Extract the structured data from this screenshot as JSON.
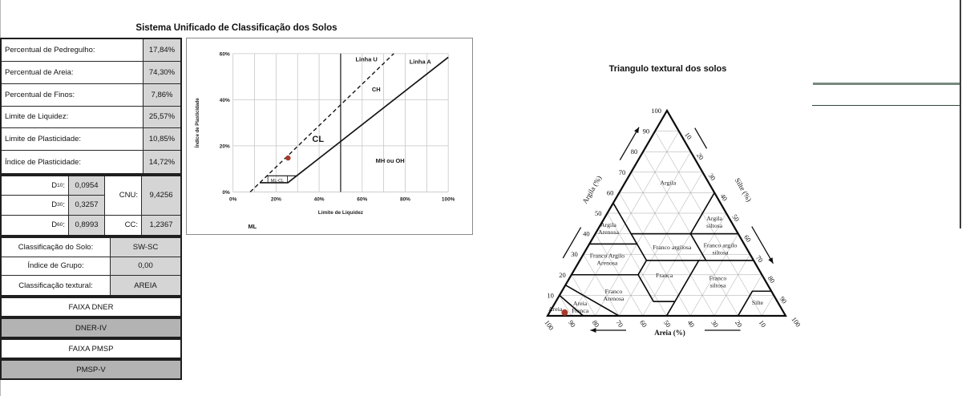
{
  "table": {
    "title": "Sistema Unificado de Classificação dos Solos",
    "rows": [
      {
        "label": "Percentual de Pedregulho:",
        "value": "17,84%"
      },
      {
        "label": "Percentual de Areia:",
        "value": "74,30%"
      },
      {
        "label": "Percentual de Finos:",
        "value": "7,86%"
      },
      {
        "label": "Limite de Liquidez:",
        "value": "25,57%"
      },
      {
        "label": "Limite de Plasticidade:",
        "value": "10,85%"
      },
      {
        "label": "Índice de Plasticidade:",
        "value": "14,72%"
      }
    ],
    "d_rows": [
      {
        "d": "D",
        "sub": "10",
        "colon": ":",
        "value": "0,0954"
      },
      {
        "d": "D",
        "sub": "30",
        "colon": ":",
        "value": "0,3257"
      },
      {
        "d": "D",
        "sub": "60",
        "colon": ":",
        "value": "0,8993"
      }
    ],
    "ratio_rows": [
      {
        "label": "CNU:",
        "value": "9,4256"
      },
      {
        "label": "CC:",
        "value": "1,2367"
      }
    ],
    "class_rows": [
      {
        "label": "Classificação do Solo:",
        "value": "SW-SC"
      },
      {
        "label": "Índice de Grupo:",
        "value": "0,00"
      },
      {
        "label": "Classificação textural:",
        "value": "AREIA"
      }
    ],
    "bands": [
      {
        "label": "FAIXA DNER"
      },
      {
        "label": "DNER-IV"
      },
      {
        "label": "FAIXA PMSP"
      },
      {
        "label": "PMSP-V"
      }
    ]
  },
  "colors": {
    "cell_fill": "#d5d5d5",
    "band_fill": "#b3b3b3",
    "grid_light": "#c6c6c6",
    "line_black": "#141414",
    "accent_line_thick": "#76897e",
    "accent_line_thin": "#31493c",
    "point_red": "#a63a28"
  },
  "chart_data": [
    {
      "type": "scatter",
      "title": "",
      "xlabel": "Limite de Liquidez",
      "ylabel": "Índice de Plasticidade",
      "xlim": [
        0,
        100
      ],
      "ylim": [
        0,
        60
      ],
      "x_ticks": [
        0,
        20,
        40,
        60,
        80,
        100
      ],
      "y_ticks": [
        0,
        20,
        40,
        60
      ],
      "tick_suffix": "%",
      "x_grid_step": 10,
      "y_grid_step": 20,
      "lines": [
        {
          "name": "Linha A",
          "style": "solid",
          "width": 1.7,
          "points": [
            [
              12.4,
              4
            ],
            [
              25.5,
              4
            ],
            [
              100,
              58.4
            ]
          ]
        },
        {
          "name": "Faixa ML-CL superior",
          "style": "solid",
          "width": 1.2,
          "points": [
            [
              15.8,
              7
            ],
            [
              29.6,
              7
            ]
          ]
        },
        {
          "name": "ML-CL caixa esquerda",
          "style": "solid",
          "width": 0.8,
          "points": [
            [
              16.2,
              4
            ],
            [
              16.2,
              7
            ]
          ]
        },
        {
          "name": "ML-CL caixa direita",
          "style": "solid",
          "width": 0.8,
          "points": [
            [
              25.3,
              4
            ],
            [
              25.3,
              7
            ]
          ]
        },
        {
          "name": "Linha U",
          "style": "dashed",
          "width": 1.4,
          "points": [
            [
              8,
              0
            ],
            [
              74.7,
              60
            ]
          ]
        },
        {
          "name": "Divisor LL 50%",
          "style": "solid",
          "width": 1.2,
          "points": [
            [
              50,
              0
            ],
            [
              50,
              60
            ]
          ]
        }
      ],
      "zone_labels": [
        {
          "text": "Linha U",
          "x": 62,
          "y": 57.5,
          "bold": true,
          "size": 7.5
        },
        {
          "text": "Linha A",
          "x": 87,
          "y": 56.5,
          "bold": true,
          "size": 7.5
        },
        {
          "text": "CH",
          "x": 66.5,
          "y": 44.5,
          "bold": true,
          "size": 7.5
        },
        {
          "text": "CL",
          "x": 39.5,
          "y": 23,
          "bold": true,
          "size": 11
        },
        {
          "text": "MH ou OH",
          "x": 73,
          "y": 13.5,
          "bold": true,
          "size": 7.5
        },
        {
          "text": "ML-CL",
          "x": 20.6,
          "y": 4.9,
          "bold": false,
          "size": 5.5
        },
        {
          "text": "ML",
          "x": 9,
          "y": -15,
          "bold": true,
          "size": 7.5
        }
      ],
      "point": {
        "x": 25.57,
        "y": 14.72
      }
    },
    {
      "type": "ternary",
      "title": "Triangulo textural dos solos",
      "axis_labels": {
        "left": "Argila (%)",
        "right": "Silte (%)",
        "bottom": "Areia (%)"
      },
      "grid_step": 10,
      "ticks_left": [
        10,
        20,
        30,
        40,
        50,
        60,
        70,
        80,
        90,
        100
      ],
      "ticks_right": [
        10,
        20,
        30,
        40,
        50,
        60,
        70,
        80,
        90,
        100
      ],
      "ticks_bottom": [
        100,
        90,
        80,
        70,
        60,
        50,
        40,
        30,
        20,
        10
      ],
      "regions": [
        {
          "name": "Argila",
          "label": [
            "Argila"
          ],
          "label_at": [
            65,
            17
          ],
          "poly": [
            [
              100,
              0
            ],
            [
              55,
              45
            ],
            [
              40,
              45
            ],
            [
              40,
              20
            ],
            [
              60,
              0
            ]
          ]
        },
        {
          "name": "Argila Arenosa",
          "label": [
            "Argila",
            "Arenosa"
          ],
          "label_at": [
            43,
            53
          ],
          "poly": [
            [
              55,
              45
            ],
            [
              35,
              65
            ],
            [
              35,
              45
            ],
            [
              40,
              45
            ]
          ]
        },
        {
          "name": "Argila siltosa",
          "label": [
            "Argila",
            "siltosa"
          ],
          "label_at": [
            46,
            7
          ],
          "poly": [
            [
              60,
              0
            ],
            [
              40,
              20
            ],
            [
              40,
              0
            ]
          ]
        },
        {
          "name": "Franco argilosa",
          "label": [
            "Franco argilosa"
          ],
          "label_at": [
            33.5,
            31
          ],
          "poly": [
            [
              40,
              45
            ],
            [
              40,
              20
            ],
            [
              27,
              20
            ],
            [
              27,
              45
            ]
          ]
        },
        {
          "name": "Franco argilo siltosa",
          "label": [
            "Franco argilo",
            "siltosa"
          ],
          "label_at": [
            33,
            11
          ],
          "poly": [
            [
              40,
              20
            ],
            [
              40,
              0
            ],
            [
              27,
              0
            ],
            [
              27,
              20
            ]
          ]
        },
        {
          "name": "Franco Argilo Arenosa",
          "label": [
            "Franco Argilo",
            "Arenosa"
          ],
          "label_at": [
            28,
            61
          ],
          "poly": [
            [
              35,
              65
            ],
            [
              20,
              80
            ],
            [
              20,
              52
            ],
            [
              27,
              45
            ],
            [
              35,
              45
            ]
          ]
        },
        {
          "name": "Franca",
          "label": [
            "Franca"
          ],
          "label_at": [
            20,
            41
          ],
          "poly": [
            [
              27,
              45
            ],
            [
              27,
              23
            ],
            [
              7,
              43
            ],
            [
              7,
              52
            ],
            [
              20,
              52
            ]
          ]
        },
        {
          "name": "Franco siltosa",
          "label": [
            "Franco",
            "siltosa"
          ],
          "label_at": [
            17,
            20
          ],
          "poly": [
            [
              27,
              23
            ],
            [
              7,
              43
            ],
            [
              0,
              50
            ],
            [
              0,
              20
            ],
            [
              12,
              8
            ],
            [
              12,
              0
            ],
            [
              27,
              0
            ]
          ]
        },
        {
          "name": "Franco Arenosa",
          "label": [
            "Franco",
            "Arenosa"
          ],
          "label_at": [
            10.5,
            67
          ],
          "poly": [
            [
              20,
              52
            ],
            [
              7,
              52
            ],
            [
              7,
              43
            ],
            [
              0,
              50
            ],
            [
              0,
              70
            ],
            [
              15,
              85
            ],
            [
              20,
              80
            ]
          ]
        },
        {
          "name": "Areia",
          "label": [
            "Areia"
          ],
          "label_at": [
            3.5,
            95
          ],
          "poly": [
            [
              10,
              90
            ],
            [
              0,
              85
            ],
            [
              0,
              100
            ]
          ]
        },
        {
          "name": "Areia Franca",
          "label": [
            "Areia",
            "Franca"
          ],
          "label_at": [
            4.7,
            84
          ],
          "poly": [
            [
              15,
              85
            ],
            [
              0,
              70
            ],
            [
              0,
              85
            ],
            [
              10,
              90
            ]
          ]
        },
        {
          "name": "Silte",
          "label": [
            "Silte"
          ],
          "label_at": [
            6.6,
            8.5
          ],
          "poly": [
            [
              12,
              8
            ],
            [
              0,
              20
            ],
            [
              0,
              0
            ],
            [
              12,
              0
            ]
          ]
        }
      ],
      "point": {
        "argila": 1.6,
        "areia": 92,
        "silte": 6.4
      }
    }
  ]
}
